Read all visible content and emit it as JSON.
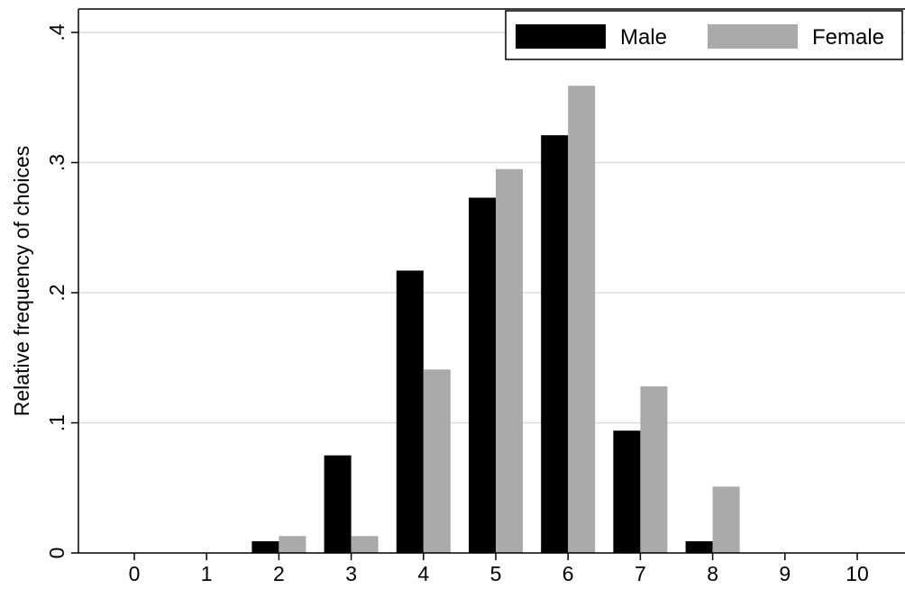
{
  "chart_data": {
    "type": "bar",
    "title": "",
    "xlabel": "",
    "ylabel": "Relative frequency of choices",
    "categories": [
      "0",
      "1",
      "2",
      "3",
      "4",
      "5",
      "6",
      "7",
      "8",
      "9",
      "10"
    ],
    "ylim": [
      0,
      0.4
    ],
    "yticks": [
      {
        "value": 0,
        "label": "0"
      },
      {
        "value": 0.1,
        "label": ".1"
      },
      {
        "value": 0.2,
        "label": ".2"
      },
      {
        "value": 0.3,
        "label": ".3"
      },
      {
        "value": 0.4,
        "label": ".4"
      }
    ],
    "grid": true,
    "legend_position": "top-right",
    "series": [
      {
        "name": "Male",
        "color": "#000000",
        "values": [
          0,
          0,
          0.009,
          0.075,
          0.217,
          0.273,
          0.321,
          0.094,
          0.009,
          0,
          0
        ]
      },
      {
        "name": "Female",
        "color": "#aaaaaa",
        "values": [
          0,
          0,
          0.013,
          0.013,
          0.141,
          0.295,
          0.359,
          0.128,
          0.051,
          0,
          0
        ]
      }
    ],
    "colors": {
      "gridline": "#dddddd",
      "axis": "#000000",
      "background": "#ffffff"
    }
  }
}
